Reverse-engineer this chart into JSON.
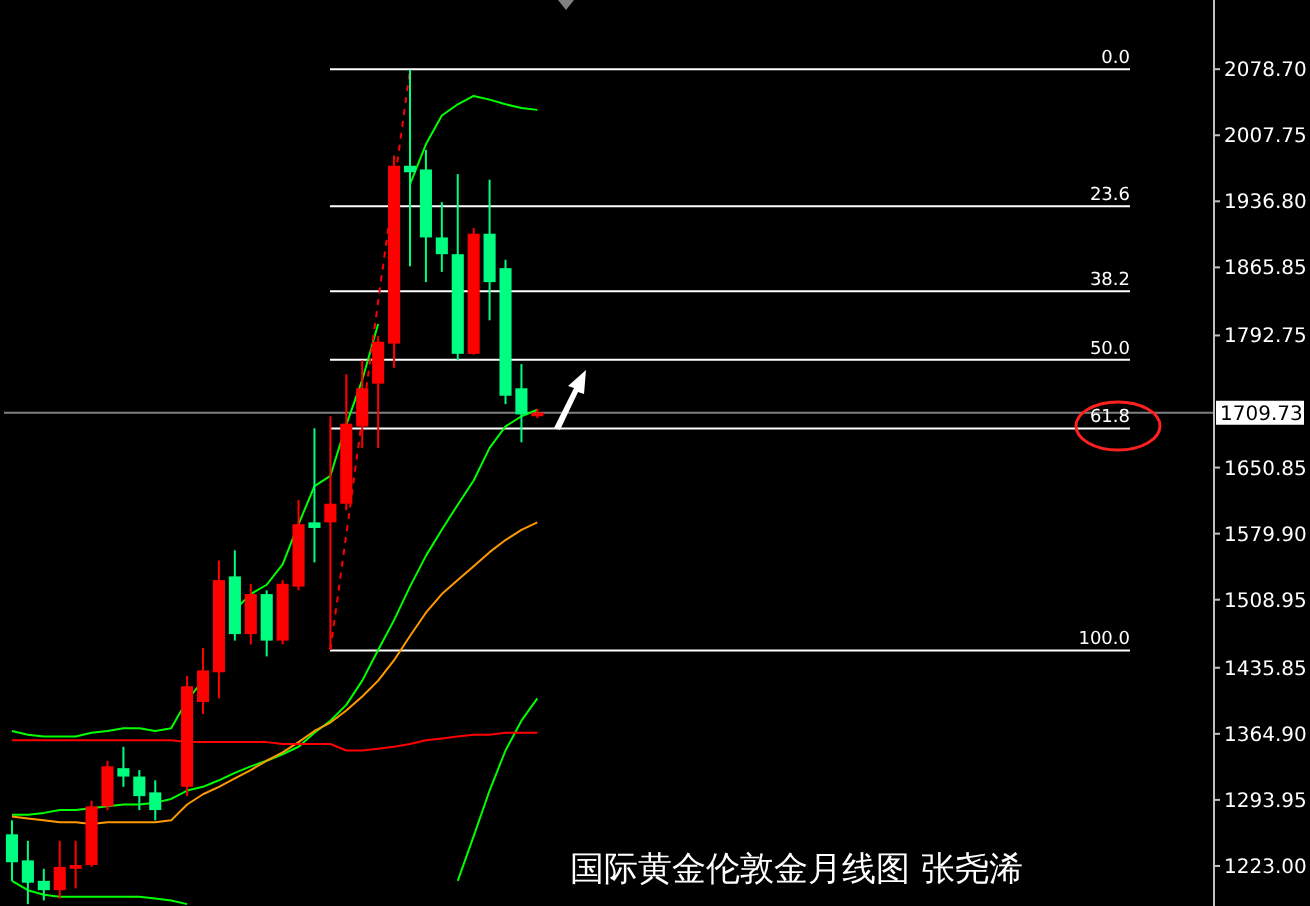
{
  "chart_data": {
    "type": "candlestick",
    "title": "国际黄金伦敦金月线图 张尧浠",
    "categories": [
      null,
      null,
      null,
      null,
      null,
      null,
      null,
      null,
      null,
      null,
      null,
      null,
      null,
      null,
      null,
      null,
      null,
      null,
      null,
      null,
      null,
      null,
      null,
      null,
      null,
      null,
      null,
      null,
      null,
      null,
      null,
      null,
      null,
      null,
      null,
      null,
      null,
      null,
      null,
      null,
      null,
      null,
      null,
      null,
      null,
      null,
      null,
      null,
      null,
      null,
      null,
      null,
      null,
      null,
      null,
      null,
      null,
      null,
      null,
      null,
      null,
      null,
      null,
      null,
      null,
      null,
      null,
      null,
      null,
      null,
      null,
      null,
      null,
      null,
      null,
      null
    ],
    "ohlc": [
      [
        1257,
        1272,
        1207,
        1227
      ],
      [
        1229,
        1250,
        1182,
        1205
      ],
      [
        1207,
        1220,
        1186,
        1197
      ],
      [
        1197,
        1250,
        1188,
        1222
      ],
      [
        1220,
        1250,
        1199,
        1224
      ],
      [
        1224,
        1293,
        1222,
        1287
      ],
      [
        1287,
        1336,
        1283,
        1330
      ],
      [
        1328,
        1351,
        1308,
        1319
      ],
      [
        1319,
        1326,
        1283,
        1298
      ],
      [
        1302,
        1315,
        1272,
        1283
      ],
      null,
      [
        1308,
        1427,
        1298,
        1416
      ],
      [
        1399,
        1457,
        1386,
        1433
      ],
      [
        1431,
        1551,
        1403,
        1530
      ],
      [
        1534,
        1562,
        1465,
        1472
      ],
      [
        1472,
        1526,
        1461,
        1515
      ],
      [
        1515,
        1519,
        1448,
        1465
      ],
      [
        1465,
        1530,
        1461,
        1526
      ],
      [
        1523,
        1616,
        1519,
        1590
      ],
      [
        1592,
        1693,
        1549,
        1586
      ],
      [
        1592,
        1706,
        1455,
        1612
      ],
      [
        1612,
        1751,
        1605,
        1698
      ],
      [
        1695,
        1766,
        1672,
        1736
      ],
      [
        1741,
        1792,
        1672,
        1786
      ],
      [
        1784,
        1986,
        1758,
        1975
      ],
      [
        1975,
        2078,
        1867,
        1968
      ],
      [
        1971,
        1992,
        1850,
        1898
      ],
      [
        1898,
        1936,
        1861,
        1880
      ],
      [
        1880,
        1966,
        1766,
        1773
      ],
      [
        1773,
        1908,
        1772,
        1902
      ],
      [
        1902,
        1960,
        1809,
        1850
      ],
      [
        1865,
        1874,
        1719,
        1728
      ],
      [
        1736,
        1762,
        1678,
        1708
      ],
      [
        1706,
        1714,
        1704,
        1710
      ],
      null,
      null,
      null,
      null,
      null,
      null,
      null,
      null,
      null,
      null,
      null,
      null,
      null,
      null,
      null,
      null,
      null,
      null,
      null,
      null,
      null,
      null,
      null,
      null,
      null,
      null,
      null,
      null,
      null,
      null,
      null,
      null,
      null,
      null,
      null,
      null,
      null,
      null,
      null,
      null,
      null,
      null
    ],
    "colors": [
      "#00ff80",
      "#00ff80",
      "#00ff80",
      "#ff0000",
      "#ff0000",
      "#ff0000",
      "#ff0000",
      "#00ff80",
      "#00ff80",
      "#00ff80",
      null,
      "#ff0000",
      "#ff0000",
      "#ff0000",
      "#00ff80",
      "#ff0000",
      "#00ff80",
      "#ff0000",
      "#ff0000",
      "#00ff80",
      "#ff0000",
      "#ff0000",
      "#ff0000",
      "#ff0000",
      "#ff0000",
      "#00ff80",
      "#00ff80",
      "#00ff80",
      "#00ff80",
      "#ff0000",
      "#00ff80",
      "#00ff80",
      "#00ff80",
      "#ff0000",
      null,
      null,
      null,
      null,
      null,
      null,
      null,
      null,
      null,
      null,
      null,
      null,
      null,
      null,
      null,
      null,
      null,
      null,
      null,
      null,
      null,
      null,
      null,
      null,
      null,
      null,
      null,
      null,
      null,
      null,
      null,
      null,
      null,
      null,
      null,
      null,
      null,
      null,
      null,
      null,
      null,
      null
    ],
    "series": [
      {
        "type": "line",
        "color": "#00ff00",
        "values": [
          1368,
          1364,
          1362,
          1362,
          1362,
          1366,
          1368,
          1371,
          1371,
          1368,
          1371,
          1401,
          1422,
          null,
          1498,
          1515,
          1525,
          1547,
          1590,
          1631,
          1642,
          1697,
          1745,
          1805,
          null,
          1955,
          1998,
          2029,
          2041,
          2050,
          2046,
          2041,
          2037,
          2035,
          null,
          null,
          null,
          null,
          null,
          null,
          null,
          null,
          null,
          null,
          null,
          null,
          null,
          null,
          null,
          null,
          null,
          null,
          null,
          null,
          null,
          null,
          null,
          null,
          null,
          null,
          null,
          null,
          null,
          null,
          null,
          null,
          null,
          null,
          null,
          null,
          null,
          null,
          null,
          null,
          null,
          null
        ]
      },
      {
        "type": "line",
        "color": "#00ff00",
        "values": [
          1278,
          1278,
          1280,
          1283,
          1283,
          1285,
          1287,
          1289,
          1289,
          1291,
          1295,
          1304,
          1308,
          1315,
          1323,
          1330,
          1336,
          1343,
          1351,
          1366,
          1379,
          1396,
          1422,
          1455,
          1487,
          1523,
          1556,
          1584,
          1611,
          1637,
          1672,
          1695,
          1706,
          1713,
          null,
          null,
          null,
          null,
          null,
          null,
          null,
          null,
          null,
          null,
          null,
          null,
          null,
          null,
          null,
          null,
          null,
          null,
          null,
          null,
          null,
          null,
          null,
          null,
          null,
          null,
          null,
          null,
          null,
          null,
          null,
          null,
          null,
          null,
          null,
          null,
          null,
          null,
          null,
          null,
          null,
          null
        ]
      },
      {
        "type": "line",
        "color": "#00ff00",
        "values": [
          1207,
          1197,
          1192,
          1190,
          1190,
          1190,
          1190,
          1190,
          1190,
          1188,
          1186,
          1182,
          null,
          null,
          null,
          null,
          null,
          null,
          null,
          null,
          null,
          null,
          null,
          null,
          null,
          null,
          null,
          null,
          1207,
          1255,
          1304,
          1347,
          1379,
          1403,
          null,
          null,
          null,
          null,
          null,
          null,
          null,
          null,
          null,
          null,
          null,
          null,
          null,
          null,
          null,
          null,
          null,
          null,
          null,
          null,
          null,
          null,
          null,
          null,
          null,
          null,
          null,
          null,
          null,
          null,
          null,
          null,
          null,
          null,
          null,
          null,
          null,
          null,
          null,
          null,
          null,
          null
        ]
      },
      {
        "type": "line",
        "color": "#ff9900",
        "values": [
          1276,
          1274,
          1272,
          1270,
          1270,
          1268,
          1270,
          1270,
          1270,
          1270,
          1272,
          1289,
          1300,
          1308,
          1317,
          1326,
          1336,
          1345,
          1356,
          1368,
          1377,
          1390,
          1405,
          1422,
          1444,
          1470,
          1495,
          1515,
          1530,
          1545,
          1560,
          1573,
          1584,
          1592,
          null,
          null,
          null,
          null,
          null,
          null,
          null,
          null,
          null,
          null,
          null,
          null,
          null,
          null,
          null,
          null,
          null,
          null,
          null,
          null,
          null,
          null,
          null,
          null,
          null,
          null,
          null,
          null,
          null,
          null,
          null,
          null,
          null,
          null,
          null,
          null,
          null,
          null,
          null,
          null,
          null,
          null
        ]
      },
      {
        "type": "line",
        "color": "#ff0000",
        "values": [
          1358,
          1358,
          1358,
          1358,
          1358,
          1358,
          1358,
          1358,
          1358,
          1358,
          1358,
          1356,
          1356,
          1356,
          1356,
          1356,
          1356,
          1354,
          1354,
          1354,
          1354,
          1347,
          1347,
          1349,
          1351,
          1354,
          1358,
          1360,
          1362,
          1364,
          1364,
          1366,
          1366,
          1366,
          null,
          null,
          null,
          null,
          null,
          null,
          null,
          null,
          null,
          null,
          null,
          null,
          null,
          null,
          null,
          null,
          null,
          null,
          null,
          null,
          null,
          null,
          null,
          null,
          null,
          null,
          null,
          null,
          null,
          null,
          null,
          null,
          null,
          null,
          null,
          null,
          null,
          null,
          null,
          null,
          null,
          null
        ]
      },
      {
        "type": "line",
        "color": "#ff0000",
        "line_style": "dashed",
        "values": [
          null,
          null,
          null,
          null,
          null,
          null,
          null,
          null,
          null,
          null,
          null,
          null,
          null,
          null,
          null,
          null,
          null,
          null,
          null,
          null,
          1455,
          1579,
          1704,
          1829,
          1953,
          2078,
          null,
          null,
          null,
          null,
          null,
          null,
          null,
          null,
          null,
          null,
          null,
          null,
          null,
          null,
          null,
          null,
          null,
          null,
          null,
          null,
          null,
          null,
          null,
          null,
          null,
          null,
          null,
          null,
          null,
          null,
          null,
          null,
          null,
          null,
          null,
          null,
          null,
          null,
          null,
          null,
          null,
          null,
          null,
          null,
          null,
          null,
          null,
          null,
          null,
          null
        ]
      }
    ],
    "ref_lines": [
      {
        "axis": "y",
        "value": 1709.73,
        "label": "1709.73",
        "color": "#808080"
      },
      {
        "axis": "y",
        "value": 2078.7,
        "color": "#ffffff"
      },
      {
        "axis": "y",
        "value": 1931.4,
        "color": "#ffffff"
      },
      {
        "axis": "y",
        "value": 1840.3,
        "color": "#ffffff"
      },
      {
        "axis": "y",
        "value": 1766.6,
        "color": "#ffffff"
      },
      {
        "axis": "y",
        "value": 1692.9,
        "color": "#ffffff"
      },
      {
        "axis": "y",
        "value": 1454.5,
        "color": "#ffffff"
      }
    ],
    "annotations": [
      {
        "text": "0.0",
        "y": 2078.7
      },
      {
        "text": "23.6",
        "y": 1931.4
      },
      {
        "text": "38.2",
        "y": 1840.3
      },
      {
        "text": "50.0",
        "y": 1766.6
      },
      {
        "text": "61.8",
        "y": 1692.9
      },
      {
        "text": "100.0",
        "y": 1454.5
      }
    ],
    "ylim": [
      1180,
      2153
    ],
    "yticks": [
      {
        "value": 2078.7,
        "label": "2078.70"
      },
      {
        "value": 2007.75,
        "label": "2007.75"
      },
      {
        "value": 1936.8,
        "label": "1936.80"
      },
      {
        "value": 1865.85,
        "label": "1865.85"
      },
      {
        "value": 1792.75,
        "label": "1792.75"
      },
      {
        "value": 1650.85,
        "label": "1650.85"
      },
      {
        "value": 1579.9,
        "label": "1579.90"
      },
      {
        "value": 1508.95,
        "label": "1508.95"
      },
      {
        "value": 1435.85,
        "label": "1435.85"
      },
      {
        "value": 1364.9,
        "label": "1364.90"
      },
      {
        "value": 1293.95,
        "label": "1293.95"
      },
      {
        "value": 1223,
        "label": "1223.00"
      }
    ],
    "tick_labels": "y"
  }
}
